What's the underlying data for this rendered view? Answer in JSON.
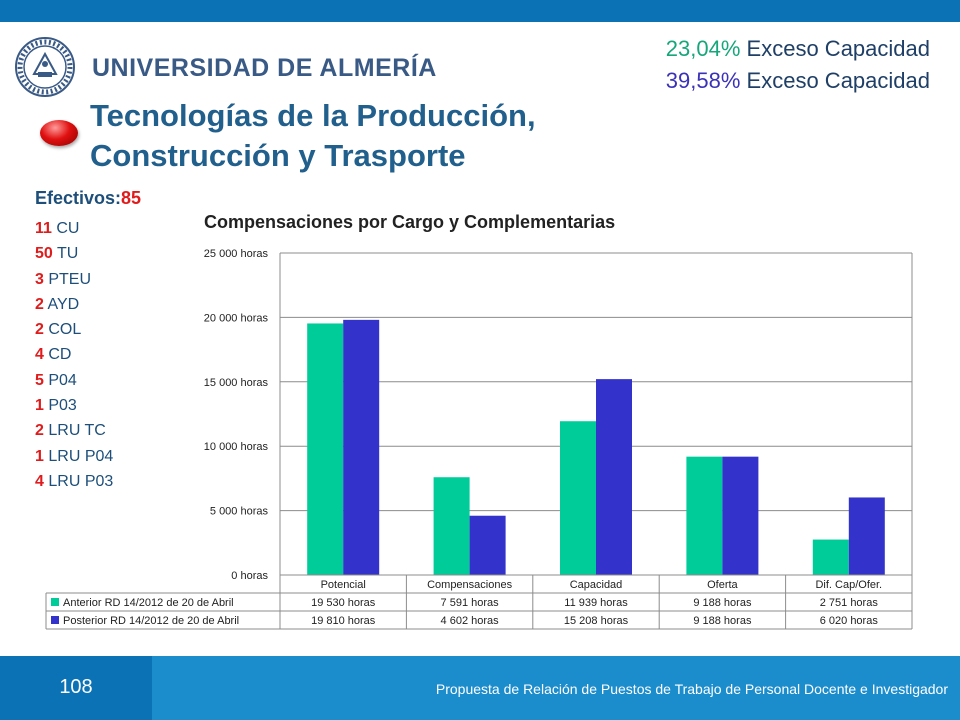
{
  "header": {
    "university": "UNIVERSIDAD DE ALMERÍA",
    "exceso_1_pct": "23,04%",
    "exceso_1_text": "Exceso Capacidad",
    "exceso_2_pct": "39,58%",
    "exceso_2_text": "Exceso Capacidad",
    "title_line1": "Tecnologías de la Producción,",
    "title_line2": "Construcción y Trasporte"
  },
  "efectivos": {
    "label": "Efectivos:",
    "value": "85",
    "items": [
      {
        "num": "11",
        "label": "CU"
      },
      {
        "num": "50",
        "label": "TU"
      },
      {
        "num": "3",
        "label": "PTEU"
      },
      {
        "num": "2",
        "label": "AYD"
      },
      {
        "num": "2",
        "label": "COL"
      },
      {
        "num": "4",
        "label": "CD"
      },
      {
        "num": "5",
        "label": "P04"
      },
      {
        "num": "1",
        "label": "P03"
      },
      {
        "num": "2",
        "label": "LRU TC"
      },
      {
        "num": "1",
        "label": "LRU P04"
      },
      {
        "num": "4",
        "label": "LRU P03"
      }
    ]
  },
  "chart_data": {
    "type": "bar",
    "title": "Compensaciones por Cargo y Complementarias",
    "categories": [
      "Potencial",
      "Compensaciones",
      "Capacidad",
      "Oferta",
      "Dif. Cap/Ofer."
    ],
    "series": [
      {
        "name": "Anterior RD 14/2012 de 20 de Abril",
        "color": "#00cc99",
        "values": [
          19530,
          7591,
          11939,
          9188,
          2751
        ],
        "labels": [
          "19 530 horas",
          "7 591 horas",
          "11 939 horas",
          "9 188 horas",
          "2 751 horas"
        ]
      },
      {
        "name": "Posterior RD 14/2012 de 20 de Abril",
        "color": "#3333cc",
        "values": [
          19810,
          4602,
          15208,
          9188,
          6020
        ],
        "labels": [
          "19 810 horas",
          "4 602 horas",
          "15 208 horas",
          "9 188 horas",
          "6 020 horas"
        ]
      }
    ],
    "yticks": [
      "0 horas",
      "5 000 horas",
      "10 000 horas",
      "15 000 horas",
      "20 000 horas",
      "25 000 horas"
    ],
    "ylim": [
      0,
      25000
    ],
    "grid": true,
    "legend": "data-table"
  },
  "footer": {
    "page": "108",
    "text": "Propuesta de Relación de Puestos de Trabajo de Personal Docente e Investigador"
  }
}
